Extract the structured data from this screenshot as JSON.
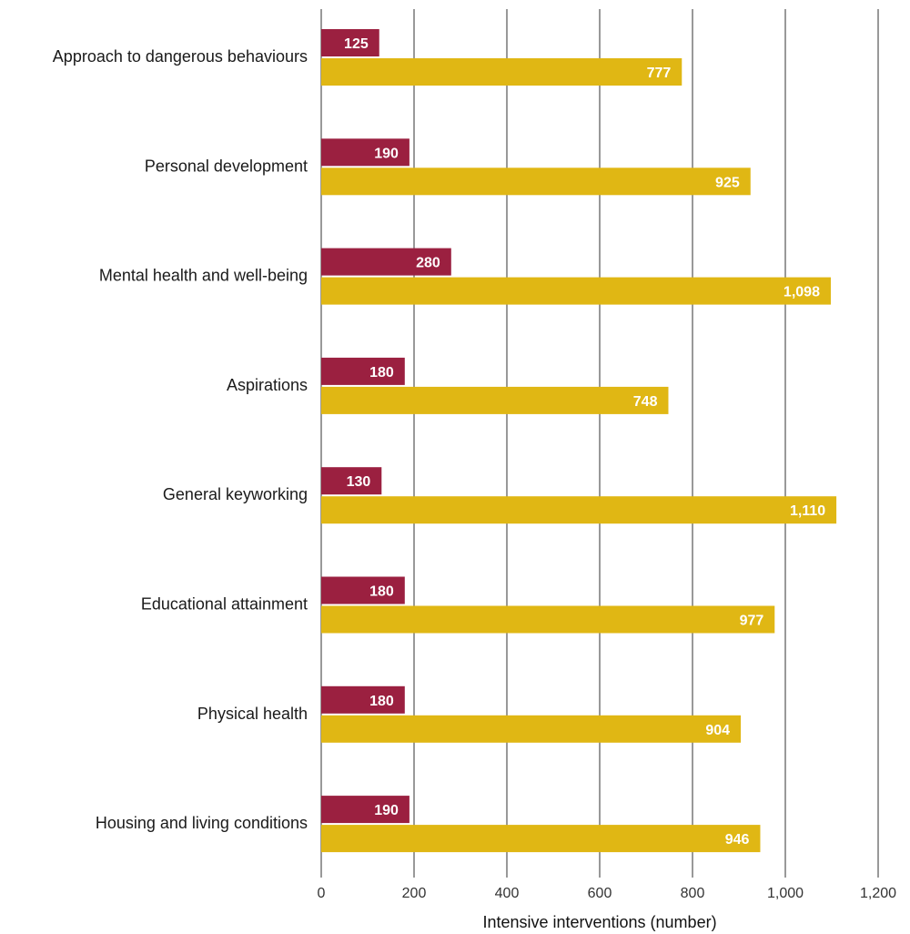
{
  "chart_data": {
    "type": "bar",
    "orientation": "horizontal",
    "categories": [
      "Approach to dangerous behaviours",
      "Personal development",
      "Mental health and well-being",
      "Aspirations",
      "General keyworking",
      "Educational attainment",
      "Physical health",
      "Housing and living conditions"
    ],
    "series": [
      {
        "color": "#9b2040",
        "values": [
          125,
          190,
          280,
          180,
          130,
          180,
          180,
          190
        ],
        "labels": [
          "125",
          "190",
          "280",
          "180",
          "130",
          "180",
          "180",
          "190"
        ]
      },
      {
        "color": "#e0b714",
        "values": [
          777,
          925,
          1098,
          748,
          1110,
          977,
          904,
          946
        ],
        "labels": [
          "777",
          "925",
          "1,098",
          "748",
          "1,110",
          "977",
          "904",
          "946"
        ]
      }
    ],
    "xlim": [
      0,
      1200
    ],
    "xticks": [
      0,
      200,
      400,
      600,
      800,
      1000,
      1200
    ],
    "xtick_labels": [
      "0",
      "200",
      "400",
      "600",
      "800",
      "1,000",
      "1,200"
    ],
    "xlabel": "Intensive interventions (number)",
    "ylabel": "",
    "title": "",
    "grid": "vertical",
    "legend": "none"
  }
}
